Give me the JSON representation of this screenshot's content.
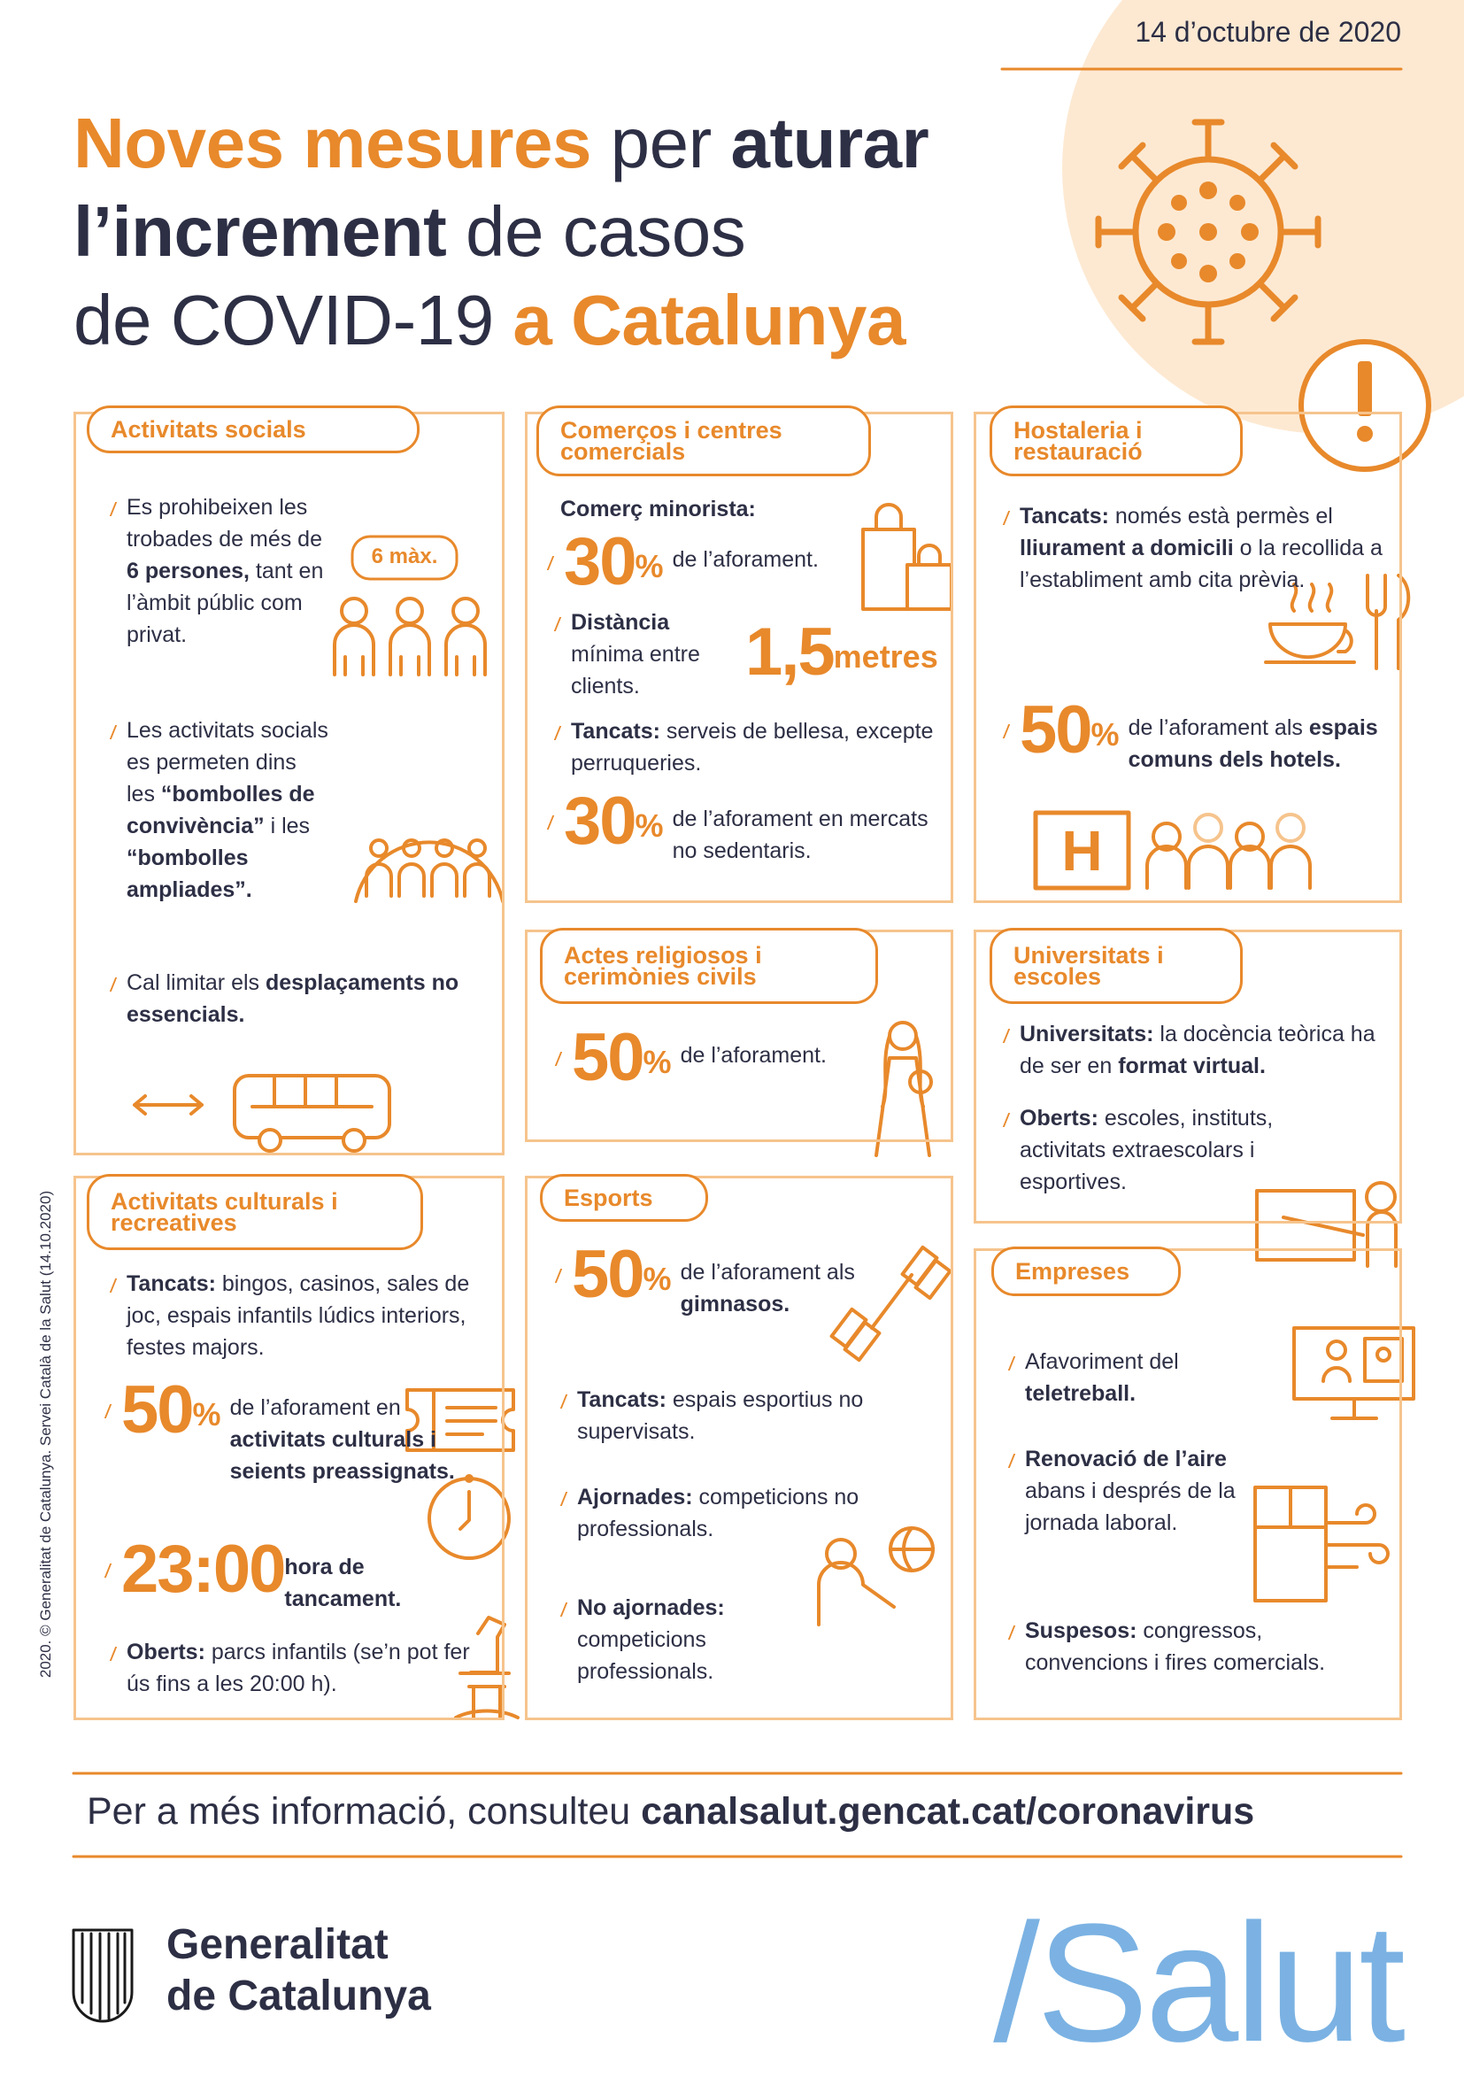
{
  "date": "14 d’octubre de 2020",
  "title": [
    [
      {
        "text": "Noves mesures",
        "bold": true,
        "color": "#e8892b"
      },
      {
        "text": " per ",
        "bold": false,
        "color": "#2d2f45"
      },
      {
        "text": "aturar",
        "bold": true,
        "color": "#2d2f45"
      }
    ],
    [
      {
        "text": "l’increment",
        "bold": true,
        "color": "#2d2f45"
      },
      {
        "text": " de casos",
        "bold": false,
        "color": "#2d2f45"
      }
    ],
    [
      {
        "text": "de COVID-19 ",
        "bold": false,
        "color": "#2d2f45"
      },
      {
        "text": "a Catalunya",
        "bold": true,
        "color": "#e8892b"
      }
    ]
  ],
  "sections": [
    {
      "title": "Activitats socials",
      "badge": "6 màx.",
      "items": [
        {
          "text": [
            "Es prohibeixen les trobades de més de ",
            {
              "bold": "6 persones,"
            },
            " tant en l’àmbit públic com privat."
          ]
        },
        {
          "text": [
            "Les activitats socials es permeten dins les ",
            {
              "bold": "“bombolles de convivència”"
            },
            " i les ",
            {
              "bold": "“bombolles ampliades”."
            }
          ]
        },
        {
          "text": [
            "Cal limitar els ",
            {
              "bold": "desplaçaments no essencials."
            }
          ]
        }
      ]
    },
    {
      "title": "Comerços i centres comercials",
      "items": [
        {
          "heading": "Comerç minorista:"
        },
        {
          "stat": "30",
          "unit": "%",
          "text": [
            "de l’aforament."
          ]
        },
        {
          "text": [
            {
              "bold": "Distància"
            },
            " mínima entre clients."
          ]
        },
        {
          "stat": "1,5",
          "unit": "metres"
        },
        {
          "text": [
            {
              "bold": "Tancats:"
            },
            " serveis de bellesa, excepte perruqueries."
          ]
        },
        {
          "stat": "30",
          "unit": "%",
          "text": [
            "de l’aforament en mercats no sedentaris."
          ]
        }
      ]
    },
    {
      "title": "Hostaleria i restauració",
      "sign": "H",
      "items": [
        {
          "text": [
            {
              "bold": "Tancats:"
            },
            " només està permès el ",
            {
              "bold": "lliurament a domicili"
            },
            " o la recollida a l’establiment amb cita prèvia."
          ]
        },
        {
          "stat": "50",
          "unit": "%",
          "text": [
            "de l’aforament als ",
            {
              "bold": "espais comuns dels hotels."
            }
          ]
        }
      ]
    },
    {
      "title": "Actes religiosos i cerimònies civils",
      "items": [
        {
          "stat": "50",
          "unit": "%",
          "text": [
            "de l’aforament."
          ]
        }
      ]
    },
    {
      "title": "Universitats i escoles",
      "items": [
        {
          "text": [
            {
              "bold": "Universitats:"
            },
            " la docència teòrica ha de ser en ",
            {
              "bold": "format virtual."
            }
          ]
        },
        {
          "text": [
            {
              "bold": "Oberts:"
            },
            " escoles, instituts, activitats extraescolars i esportives."
          ]
        }
      ]
    },
    {
      "title": "Activitats culturals i recreatives",
      "items": [
        {
          "text": [
            {
              "bold": "Tancats:"
            },
            " bingos, casinos, sales de joc, espais infantils lúdics interiors, festes majors."
          ]
        },
        {
          "stat": "50",
          "unit": "%",
          "text": [
            "de l’aforament en ",
            {
              "bold": "activitats culturals i seients preassignats."
            }
          ]
        },
        {
          "stat": "23:00",
          "text": [
            {
              "bold": "hora de tancament."
            }
          ]
        },
        {
          "text": [
            {
              "bold": "Oberts:"
            },
            " parcs infantils (se’n pot fer ús fins a les 20:00 h)."
          ]
        }
      ]
    },
    {
      "title": "Esports",
      "items": [
        {
          "stat": "50",
          "unit": "%",
          "text": [
            "de l’aforament als ",
            {
              "bold": "gimnasos."
            }
          ]
        },
        {
          "text": [
            {
              "bold": "Tancats:"
            },
            " espais esportius no supervisats."
          ]
        },
        {
          "text": [
            {
              "bold": "Ajornades:"
            },
            " competicions no professionals."
          ]
        },
        {
          "text": [
            {
              "bold": "No ajornades:"
            },
            " competicions professionals."
          ]
        }
      ]
    },
    {
      "title": "Empreses",
      "items": [
        {
          "text": [
            "Afavoriment del ",
            {
              "bold": "teletreball."
            }
          ]
        },
        {
          "text": [
            {
              "bold": "Renovació de l’aire"
            },
            " abans i després de la jornada laboral."
          ]
        },
        {
          "text": [
            {
              "bold": "Suspesos:"
            },
            " congressos, convencions i fires comercials."
          ]
        }
      ]
    }
  ],
  "footer": [
    "Per a més informació, consulteu ",
    {
      "bold": "canalsalut.gencat.cat/coronavirus"
    }
  ],
  "logo": [
    "Generalitat",
    "de Catalunya"
  ],
  "brand": "/Salut",
  "credit": "2020. © Generalitat de Catalunya. Servei Català de la Salut (14.10.2020)"
}
